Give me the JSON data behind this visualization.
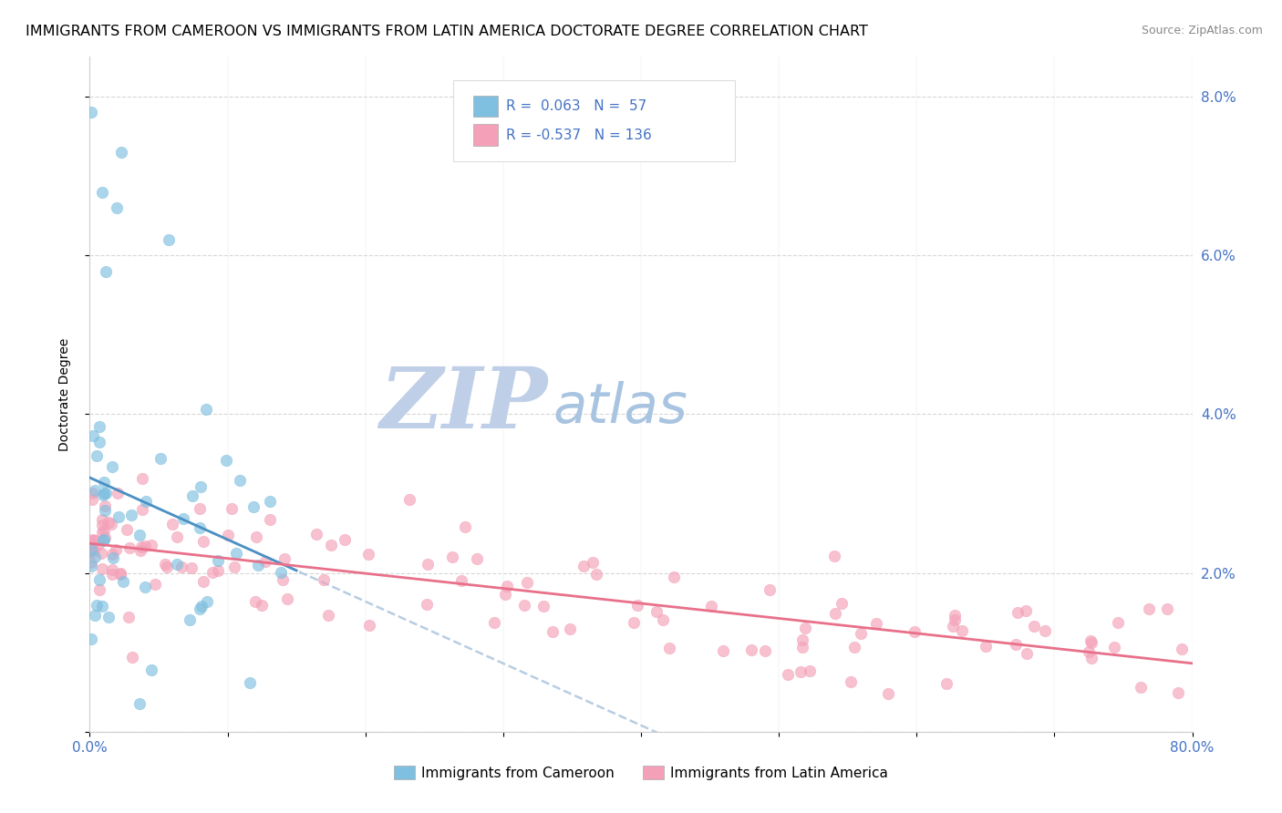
{
  "title": "IMMIGRANTS FROM CAMEROON VS IMMIGRANTS FROM LATIN AMERICA DOCTORATE DEGREE CORRELATION CHART",
  "source": "Source: ZipAtlas.com",
  "ylabel": "Doctorate Degree",
  "xlim": [
    0,
    80
  ],
  "ylim": [
    0,
    8.5
  ],
  "legend_label1": "Immigrants from Cameroon",
  "legend_label2": "Immigrants from Latin America",
  "R1": 0.063,
  "N1": 57,
  "R2": -0.537,
  "N2": 136,
  "color1": "#7fbfdf",
  "color2": "#f4a0b8",
  "line_color1": "#4a90c4",
  "line_color2": "#e8708a",
  "trendline_color": "#b0c8e0",
  "background_color": "#ffffff",
  "title_fontsize": 11.5,
  "axis_label_fontsize": 10,
  "tick_fontsize": 11,
  "right_tick_color": "#4472c4",
  "watermark_zip_color": "#c0cfe8",
  "watermark_atlas_color": "#a8c4e0"
}
